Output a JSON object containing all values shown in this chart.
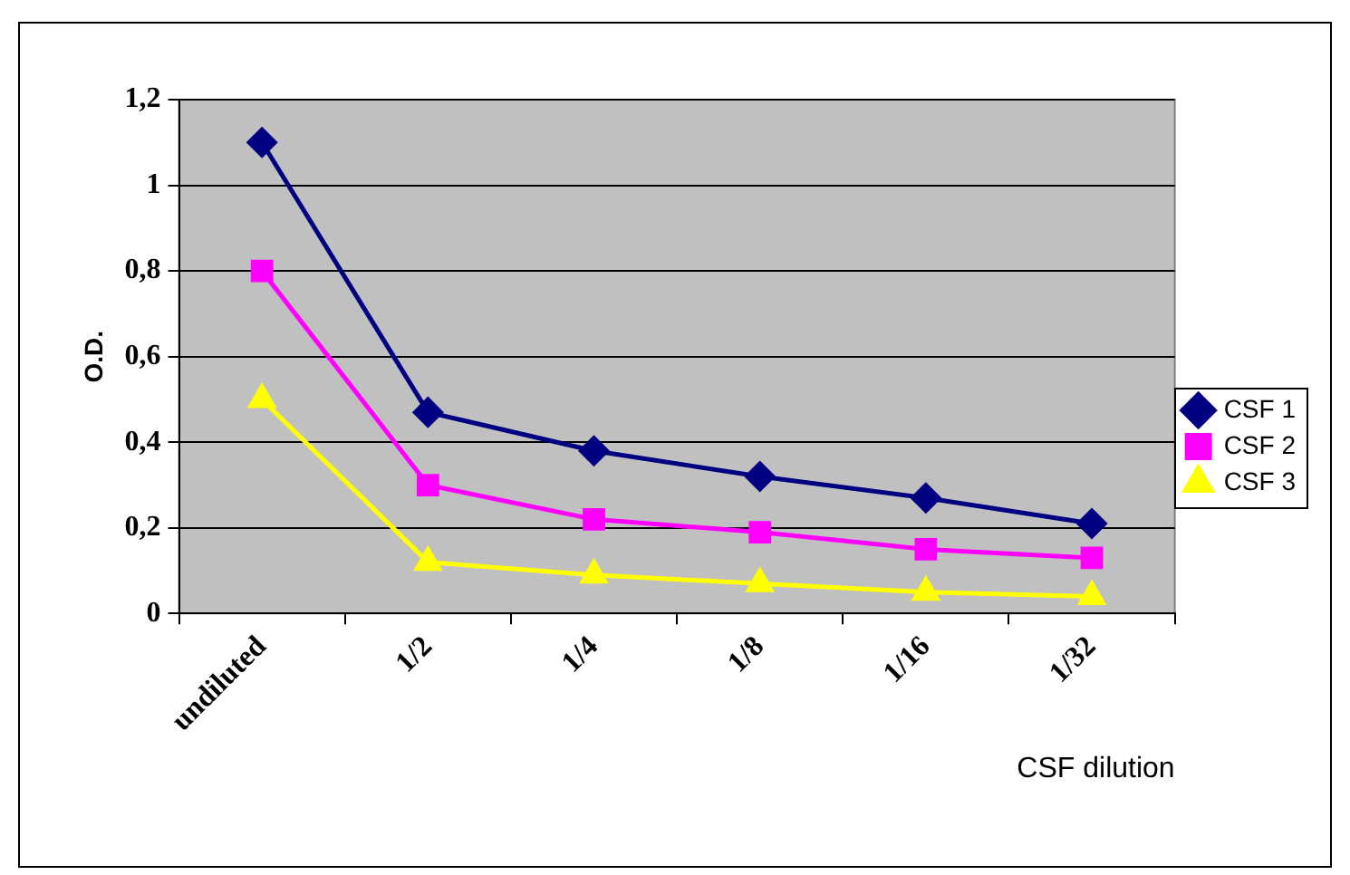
{
  "chart_data": {
    "type": "line",
    "xlabel": "CSF dilution",
    "ylabel": "O.D.",
    "categories": [
      "undiluted",
      "1/2",
      "1/4",
      "1/8",
      "1/16",
      "1/32"
    ],
    "series": [
      {
        "name": "CSF 1",
        "color": "#000080",
        "marker": "diamond",
        "values": [
          1.1,
          0.47,
          0.38,
          0.32,
          0.27,
          0.21
        ]
      },
      {
        "name": "CSF 2",
        "color": "#ff00ff",
        "marker": "square",
        "values": [
          0.8,
          0.3,
          0.22,
          0.19,
          0.15,
          0.13
        ]
      },
      {
        "name": "CSF 3",
        "color": "#ffff00",
        "marker": "triangle",
        "values": [
          0.5,
          0.12,
          0.09,
          0.07,
          0.05,
          0.04
        ]
      }
    ],
    "ylim": [
      0,
      1.2
    ],
    "yticks": [
      0,
      {
        "value": 0.2,
        "label": "0,2"
      },
      {
        "value": 0.4,
        "label": "0,4"
      },
      {
        "value": 0.6,
        "label": "0,6"
      },
      {
        "value": 0.8,
        "label": "0,8"
      },
      1,
      {
        "value": 1.2,
        "label": "1,2"
      }
    ],
    "grid": "y",
    "legend": "right",
    "line_style": "solid"
  }
}
